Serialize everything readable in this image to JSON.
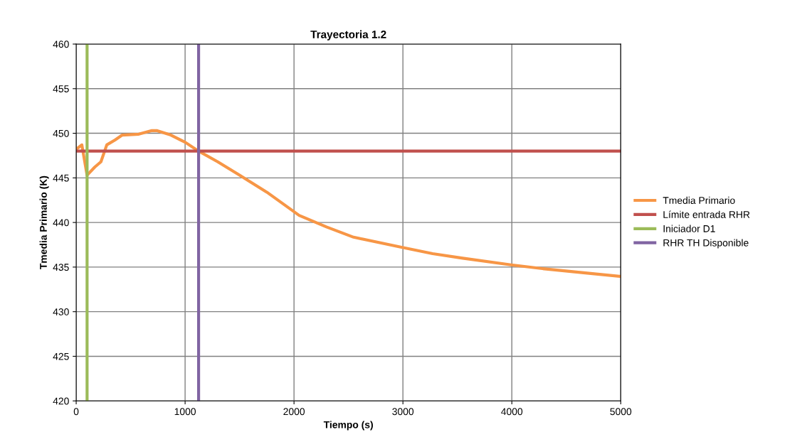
{
  "chart_data": {
    "type": "line",
    "title": "Trayectoria 1.2",
    "xlabel": "Tiempo (s)",
    "ylabel": "Tmedia Primario (K)",
    "series": [
      {
        "name": "Tmedia Primario",
        "color": "#f79646",
        "x": [
          0,
          52,
          90,
          100,
          170,
          227,
          281,
          357,
          423,
          575,
          695,
          739,
          869,
          1000,
          1124,
          1300,
          1500,
          1750,
          2047,
          2298,
          2547,
          2995,
          3273,
          3549,
          3992,
          4300,
          4675,
          5000
        ],
        "values": [
          448.2,
          448.7,
          446.0,
          445.3,
          446.2,
          446.8,
          448.7,
          449.25,
          449.8,
          449.9,
          450.3,
          450.3,
          449.8,
          449.0,
          448.0,
          446.8,
          445.3,
          443.4,
          440.8,
          439.5,
          438.35,
          437.2,
          436.5,
          436.0,
          435.25,
          434.8,
          434.35,
          433.95
        ]
      },
      {
        "name": "Límite entrada RHR",
        "color": "#c0504d",
        "x": [
          0,
          5000
        ],
        "values": [
          448,
          448
        ]
      },
      {
        "name": "Iniciador D1",
        "color": "#9bbb59",
        "x": [
          100,
          100
        ],
        "values": [
          420,
          460
        ]
      },
      {
        "name": "RHR TH Disponible",
        "color": "#8064a2",
        "x": [
          1124,
          1124
        ],
        "values": [
          420,
          460
        ]
      }
    ],
    "xlim": [
      0,
      5000
    ],
    "xticks": [
      0,
      1000,
      2000,
      3000,
      4000,
      5000
    ],
    "ylim": [
      420,
      460
    ],
    "yticks": [
      420,
      425,
      430,
      435,
      440,
      445,
      450,
      455,
      460
    ],
    "grid": true,
    "legend": "right",
    "marker": "none",
    "line_style": "solid"
  }
}
